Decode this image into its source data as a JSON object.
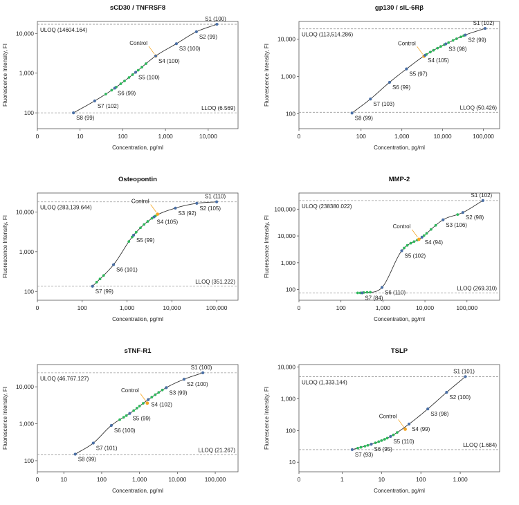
{
  "chart_data": [
    {
      "type": "scatter",
      "title": "sCD30 / TNFRSF8",
      "xlabel": "Concentration, pg/ml",
      "ylabel": "Fluorescence Intensity, FI",
      "x_scale": "log",
      "y_scale": "log",
      "xlim": [
        1,
        50000
      ],
      "ylim": [
        40,
        20000
      ],
      "x_ticks": [
        "0",
        "10",
        "100",
        "1,000",
        "10,000"
      ],
      "y_ticks": [
        "100",
        "1,000",
        "10,000"
      ],
      "uloq": {
        "label": "ULOQ (14604.164)",
        "value": 17000
      },
      "lloq": {
        "label": "LLOQ (6.569)",
        "value": 100
      },
      "standards": [
        {
          "label": "S1 (100)",
          "x": 16000,
          "y": 17000
        },
        {
          "label": "S2 (99)",
          "x": 5300,
          "y": 11000
        },
        {
          "label": "S3 (100)",
          "x": 1800,
          "y": 5500
        },
        {
          "label": "S4 (100)",
          "x": 590,
          "y": 2700
        },
        {
          "label": "S5 (100)",
          "x": 200,
          "y": 1050
        },
        {
          "label": "S6 (99)",
          "x": 65,
          "y": 420
        },
        {
          "label": "S7 (102)",
          "x": 22,
          "y": 200
        },
        {
          "label": "S8 (99)",
          "x": 7,
          "y": 100
        }
      ],
      "control": {
        "label": "Control",
        "x": 590,
        "y": 2700
      },
      "samples": [
        40,
        55,
        70,
        90,
        110,
        140,
        170,
        230,
        280,
        350
      ]
    },
    {
      "type": "scatter",
      "title": "gp130 / sIL-6Rβ",
      "xlabel": "Concentration, pg/ml",
      "ylabel": "Fluorescence Intensity, FI",
      "x_scale": "log",
      "y_scale": "log",
      "xlim": [
        3,
        250000
      ],
      "ylim": [
        40,
        30000
      ],
      "x_ticks": [
        "0",
        "100",
        "1,000",
        "10,000",
        "100,000"
      ],
      "y_ticks": [
        "100",
        "1,000",
        "10,000"
      ],
      "uloq": {
        "label": "ULOQ (113,514.286)",
        "value": 19000
      },
      "lloq": {
        "label": "LLOQ (50.426)",
        "value": 110
      },
      "standards": [
        {
          "label": "S1 (102)",
          "x": 110000,
          "y": 19500
        },
        {
          "label": "S2 (99)",
          "x": 36000,
          "y": 13000
        },
        {
          "label": "S3 (98)",
          "x": 12000,
          "y": 7500
        },
        {
          "label": "S4 (105)",
          "x": 3700,
          "y": 3700
        },
        {
          "label": "S5 (97)",
          "x": 1300,
          "y": 1600
        },
        {
          "label": "S6 (99)",
          "x": 500,
          "y": 700
        },
        {
          "label": "S7 (103)",
          "x": 170,
          "y": 250
        },
        {
          "label": "S8 (99)",
          "x": 60,
          "y": 105
        }
      ],
      "control": {
        "label": "Control",
        "x": 3500,
        "y": 3500
      },
      "samples": [
        4000,
        5000,
        6000,
        7500,
        9000,
        11000,
        14000,
        18000,
        22000,
        28000,
        33000
      ]
    },
    {
      "type": "scatter",
      "title": "Osteopontin",
      "xlabel": "Concentration, pg/ml",
      "ylabel": "Fluorescence Intensity, FI",
      "x_scale": "log",
      "y_scale": "log",
      "xlim": [
        10,
        300000
      ],
      "ylim": [
        60,
        30000
      ],
      "x_ticks": [
        "0",
        "100",
        "1,000",
        "10,000",
        "100,000"
      ],
      "y_ticks": [
        "100",
        "1,000",
        "10,000"
      ],
      "uloq": {
        "label": "ULOQ (283,139.644)",
        "value": 18000
      },
      "lloq": {
        "label": "LLOQ (351.222)",
        "value": 135
      },
      "standards": [
        {
          "label": "S1 (110)",
          "x": 100000,
          "y": 18000
        },
        {
          "label": "S2 (105)",
          "x": 36000,
          "y": 16500
        },
        {
          "label": "S3 (92)",
          "x": 12000,
          "y": 12500
        },
        {
          "label": "S4 (105)",
          "x": 4000,
          "y": 7500
        },
        {
          "label": "S5 (99)",
          "x": 1400,
          "y": 2600
        },
        {
          "label": "S6 (101)",
          "x": 500,
          "y": 470
        },
        {
          "label": "S7 (99)",
          "x": 170,
          "y": 135
        }
      ],
      "control": {
        "label": "Control",
        "x": 4800,
        "y": 8800
      },
      "samples": [
        210,
        250,
        300,
        1100,
        1300,
        1600,
        2000,
        2400,
        2900,
        3600,
        4300
      ]
    },
    {
      "type": "scatter",
      "title": "MMP-2",
      "xlabel": "Concentration, pg/ml",
      "ylabel": "Fluorescence Intensity, FI",
      "x_scale": "log",
      "y_scale": "log",
      "xlim": [
        10,
        600000
      ],
      "ylim": [
        40,
        400000
      ],
      "x_ticks": [
        "0",
        "100",
        "1,000",
        "10,000",
        "100,000"
      ],
      "y_ticks": [
        "100",
        "1,000",
        "10,000",
        "100,000"
      ],
      "uloq": {
        "label": "ULOQ (238380.022)",
        "value": 210000
      },
      "lloq": {
        "label": "LLOQ (269.310)",
        "value": 75
      },
      "standards": [
        {
          "label": "S1 (102)",
          "x": 240000,
          "y": 210000
        },
        {
          "label": "S2 (98)",
          "x": 80000,
          "y": 75000
        },
        {
          "label": "S3 (106)",
          "x": 27000,
          "y": 40000
        },
        {
          "label": "S4 (94)",
          "x": 8500,
          "y": 9000
        },
        {
          "label": "S5 (102)",
          "x": 2800,
          "y": 2800
        },
        {
          "label": "S6 (110)",
          "x": 950,
          "y": 120
        },
        {
          "label": "S7 (84)",
          "x": 320,
          "y": 75
        }
      ],
      "control": {
        "label": "Control",
        "x": 7200,
        "y": 7500
      },
      "samples": [
        250,
        290,
        350,
        420,
        500,
        3200,
        3800,
        4600,
        5500,
        6600,
        9500,
        11000,
        14000,
        18000,
        60000
      ]
    },
    {
      "type": "scatter",
      "title": "sTNF-R1",
      "xlabel": "Concentration, pg/ml",
      "ylabel": "Fluorescence Intensity, FI",
      "x_scale": "log",
      "y_scale": "log",
      "xlim": [
        2,
        400000
      ],
      "ylim": [
        50,
        40000
      ],
      "x_ticks": [
        "0",
        "10",
        "100",
        "1,000",
        "10,000",
        "100,000"
      ],
      "y_ticks": [
        "100",
        "1,000",
        "10,000"
      ],
      "uloq": {
        "label": "ULOQ (46,767.127)",
        "value": 24000
      },
      "lloq": {
        "label": "LLOQ (21.267)",
        "value": 145
      },
      "standards": [
        {
          "label": "S1 (100)",
          "x": 47000,
          "y": 24000
        },
        {
          "label": "S2 (100)",
          "x": 15000,
          "y": 16000
        },
        {
          "label": "S3 (99)",
          "x": 5100,
          "y": 9500
        },
        {
          "label": "S4 (102)",
          "x": 1700,
          "y": 4500
        },
        {
          "label": "S5 (99)",
          "x": 550,
          "y": 1900
        },
        {
          "label": "S6 (100)",
          "x": 180,
          "y": 900
        },
        {
          "label": "S7 (101)",
          "x": 60,
          "y": 300
        },
        {
          "label": "S8 (99)",
          "x": 20,
          "y": 150
        }
      ],
      "control": {
        "label": "Control",
        "x": 1600,
        "y": 3600
      },
      "samples": [
        300,
        380,
        450,
        700,
        850,
        1000,
        1250,
        2100,
        2600,
        3200,
        4000,
        5000
      ]
    },
    {
      "type": "scatter",
      "title": "TSLP",
      "xlabel": "Concentration, pg/ml",
      "ylabel": "Fluorescence Intensity, FI",
      "x_scale": "log",
      "y_scale": "log",
      "xlim": [
        0.08,
        10000
      ],
      "ylim": [
        5,
        12000
      ],
      "x_ticks": [
        "0",
        "1",
        "10",
        "100",
        "1,000"
      ],
      "y_ticks": [
        "10",
        "100",
        "1,000",
        "10,000"
      ],
      "uloq": {
        "label": "ULOQ (1,333.144)",
        "value": 5000
      },
      "lloq": {
        "label": "LLOQ (1.684)",
        "value": 25
      },
      "standards": [
        {
          "label": "S1 (101)",
          "x": 1350,
          "y": 5000
        },
        {
          "label": "S2 (100)",
          "x": 450,
          "y": 1600
        },
        {
          "label": "S3 (98)",
          "x": 150,
          "y": 480
        },
        {
          "label": "S4 (99)",
          "x": 50,
          "y": 160
        },
        {
          "label": "S5 (110)",
          "x": 17,
          "y": 65
        },
        {
          "label": "S6 (95)",
          "x": 5.5,
          "y": 37
        },
        {
          "label": "S7 (93)",
          "x": 1.8,
          "y": 25
        }
      ],
      "control": {
        "label": "Control",
        "x": 40,
        "y": 110
      },
      "samples": [
        2.5,
        3,
        3.8,
        4.5,
        7,
        8.5,
        10,
        12,
        14,
        20,
        25
      ]
    }
  ]
}
